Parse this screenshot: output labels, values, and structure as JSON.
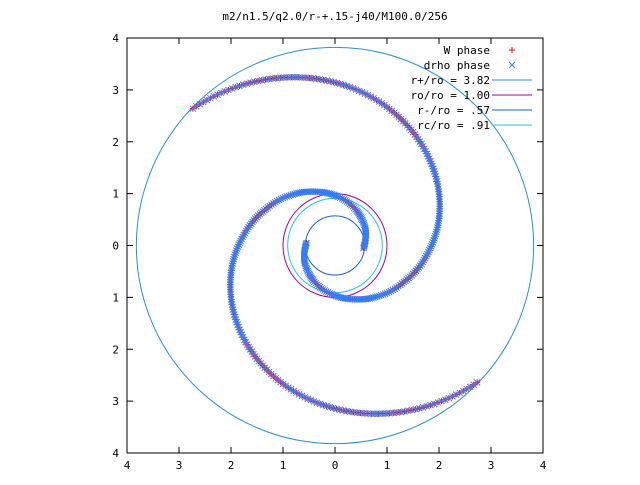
{
  "chart_data": {
    "type": "scatter",
    "title": "m2/n1.5/q2.0/r-+.15-j40/M100.0/256",
    "xlim": [
      -4,
      4
    ],
    "ylim": [
      -4,
      4
    ],
    "x_ticks": [
      -4,
      -3,
      -2,
      -1,
      0,
      1,
      2,
      3,
      4
    ],
    "y_ticks": [
      -4,
      -3,
      -2,
      -1,
      0,
      1,
      2,
      3,
      4
    ],
    "x_tick_labels": [
      "4",
      "3",
      "2",
      "1",
      "0",
      "1",
      "2",
      "3",
      "4"
    ],
    "y_tick_labels": [
      "4",
      "3",
      "2",
      "1",
      "0",
      "1",
      "2",
      "3",
      "4"
    ],
    "grid": false,
    "legend_position": "top-right",
    "legend": [
      {
        "label": "W phase",
        "marker": "+",
        "color": "#ff0000"
      },
      {
        "label": "drho phase",
        "marker": "x",
        "color": "#2f7fff"
      },
      {
        "label": "r+/ro = 3.82",
        "line": true,
        "color": "#2d8fd0"
      },
      {
        "label": "ro/ro = 1.00",
        "line": true,
        "color": "#a000a0"
      },
      {
        "label": "r-/ro = .57",
        "line": true,
        "color": "#1e5fd0"
      },
      {
        "label": "rc/ro = .91",
        "line": true,
        "color": "#20c8d0"
      }
    ],
    "circles": [
      {
        "name": "r+/ro",
        "radius": 3.82,
        "color": "#2d8fd0"
      },
      {
        "name": "ro/ro",
        "radius": 1.0,
        "color": "#a000a0"
      },
      {
        "name": "r-/ro",
        "radius": 0.57,
        "color": "#1e5fd0"
      },
      {
        "name": "rc/ro",
        "radius": 0.91,
        "color": "#20c8d0"
      }
    ],
    "series": [
      {
        "name": "W phase",
        "marker": "+",
        "color": "#ff0000",
        "arms": [
          {
            "radii": [
              0.55,
              0.58,
              0.62,
              0.66,
              0.7,
              0.74,
              0.79,
              0.84,
              0.89,
              0.94,
              1.0,
              1.06,
              1.12,
              1.19,
              1.26,
              1.34,
              1.42,
              1.5,
              1.6,
              1.7,
              1.8,
              1.9,
              2.0,
              2.1,
              2.2,
              2.3,
              2.4,
              2.5,
              2.6,
              2.7,
              2.8,
              2.9,
              3.0,
              3.1,
              3.2,
              3.3,
              3.4,
              3.5,
              3.6,
              3.7,
              3.8
            ],
            "angles_deg": [
              175,
              186,
              197,
              207,
              218,
              228,
              238,
              248,
              257,
              266,
              275,
              284,
              292,
              300,
              308,
              316,
              324,
              332,
              340,
              348,
              356,
              363,
              370,
              377,
              384,
              391,
              398,
              405,
              412,
              419,
              426,
              433,
              440,
              447,
              454,
              461,
              468,
              475,
              482,
              489,
              496
            ]
          },
          {
            "radii": [
              0.55,
              0.58,
              0.62,
              0.66,
              0.7,
              0.74,
              0.79,
              0.84,
              0.89,
              0.94,
              1.0,
              1.06,
              1.12,
              1.19,
              1.26,
              1.34,
              1.42,
              1.5,
              1.6,
              1.7,
              1.8,
              1.9,
              2.0,
              2.1,
              2.2,
              2.3,
              2.4,
              2.5,
              2.6,
              2.7,
              2.8,
              2.9,
              3.0,
              3.1,
              3.2,
              3.3,
              3.4,
              3.5,
              3.6,
              3.7,
              3.8
            ],
            "angles_deg": [
              -5,
              6,
              17,
              27,
              38,
              48,
              58,
              68,
              77,
              86,
              95,
              104,
              112,
              120,
              128,
              136,
              144,
              152,
              160,
              168,
              176,
              183,
              190,
              197,
              204,
              211,
              218,
              225,
              232,
              239,
              246,
              253,
              260,
              267,
              274,
              281,
              288,
              295,
              302,
              309,
              316
            ]
          }
        ]
      },
      {
        "name": "drho phase",
        "marker": "x",
        "color": "#2f7fff",
        "arms": [
          {
            "radii": [
              0.55,
              0.58,
              0.62,
              0.66,
              0.7,
              0.74,
              0.79,
              0.84,
              0.89,
              0.94,
              1.0,
              1.06,
              1.12,
              1.19,
              1.26,
              1.34,
              1.42,
              1.5,
              1.6,
              1.7,
              1.8,
              1.9,
              2.0,
              2.1,
              2.2,
              2.3,
              2.4,
              2.5,
              2.6,
              2.7,
              2.8,
              2.9,
              3.0,
              3.1,
              3.2,
              3.3,
              3.4,
              3.5,
              3.6,
              3.7,
              3.8
            ],
            "angles_deg": [
              175,
              186,
              197,
              207,
              218,
              228,
              238,
              248,
              257,
              266,
              275,
              284,
              292,
              300,
              308,
              316,
              324,
              332,
              340,
              348,
              356,
              363,
              370,
              377,
              384,
              391,
              398,
              405,
              412,
              419,
              426,
              433,
              440,
              447,
              454,
              461,
              468,
              475,
              482,
              489,
              496
            ]
          },
          {
            "radii": [
              0.55,
              0.58,
              0.62,
              0.66,
              0.7,
              0.74,
              0.79,
              0.84,
              0.89,
              0.94,
              1.0,
              1.06,
              1.12,
              1.19,
              1.26,
              1.34,
              1.42,
              1.5,
              1.6,
              1.7,
              1.8,
              1.9,
              2.0,
              2.1,
              2.2,
              2.3,
              2.4,
              2.5,
              2.6,
              2.7,
              2.8,
              2.9,
              3.0,
              3.1,
              3.2,
              3.3,
              3.4,
              3.5,
              3.6,
              3.7,
              3.8
            ],
            "angles_deg": [
              -5,
              6,
              17,
              27,
              38,
              48,
              58,
              68,
              77,
              86,
              95,
              104,
              112,
              120,
              128,
              136,
              144,
              152,
              160,
              168,
              176,
              183,
              190,
              197,
              204,
              211,
              218,
              225,
              232,
              239,
              246,
              253,
              260,
              267,
              274,
              281,
              288,
              295,
              302,
              309,
              316
            ]
          }
        ]
      }
    ]
  }
}
